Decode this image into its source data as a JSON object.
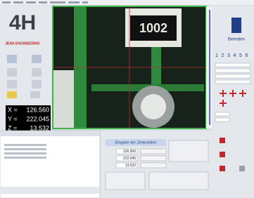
{
  "logo": {
    "mark": "4H",
    "company": "JENA ENGINEERING"
  },
  "readout": {
    "x_label": "X =",
    "x": "126.560",
    "y_label": "Y =",
    "y": "222.045",
    "z_label": "Z =",
    "z": "13.532"
  },
  "camera": {
    "part_label": "1002"
  },
  "exit_button": "Beenden",
  "tool_numbers": [
    "1",
    "2",
    "3",
    "4",
    "5",
    "6"
  ],
  "target_panel": {
    "title": "Eingabe der Zielposition",
    "fields": [
      "126.560",
      "222.045",
      "13.532"
    ]
  }
}
